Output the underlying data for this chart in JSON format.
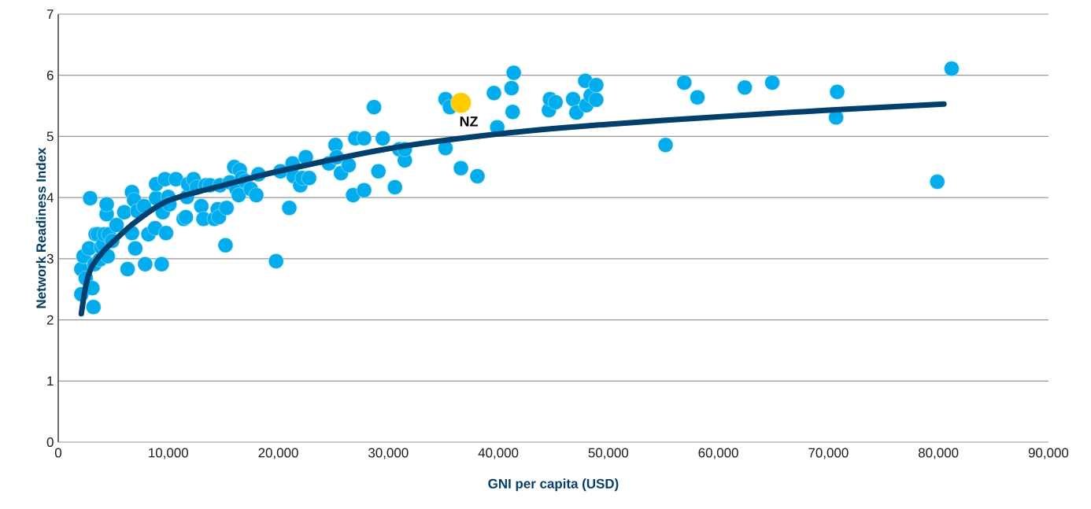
{
  "chart_data": {
    "type": "scatter",
    "xlabel": "GNI per capita (USD)",
    "ylabel": "Network Readiness Index",
    "xlim": [
      0,
      90000
    ],
    "ylim": [
      0,
      7
    ],
    "xticks": [
      0,
      {
        "value": 10000,
        "label": "10,000"
      },
      {
        "value": 20000,
        "label": "20,000"
      },
      {
        "value": 30000,
        "label": "30,000"
      },
      {
        "value": 40000,
        "label": "40,000"
      },
      {
        "value": 50000,
        "label": "50,000"
      },
      {
        "value": 60000,
        "label": "60,000"
      },
      {
        "value": 70000,
        "label": "70,000"
      },
      {
        "value": 80000,
        "label": "80,000"
      },
      {
        "value": 90000,
        "label": "90,000"
      }
    ],
    "yticks": [
      0,
      1,
      2,
      3,
      4,
      5,
      6,
      7
    ],
    "grid": "y",
    "series": [
      {
        "color": "#00aeef",
        "marker": "circle",
        "x": [
          2100,
          2100,
          2300,
          2500,
          2800,
          2900,
          3100,
          3200,
          3300,
          3400,
          3600,
          3800,
          3900,
          4100,
          4200,
          4400,
          4400,
          4500,
          4600,
          4900,
          5300,
          6000,
          6300,
          6700,
          6700,
          6900,
          7000,
          7200,
          7800,
          7900,
          8200,
          8800,
          8900,
          8900,
          9400,
          9500,
          9700,
          9800,
          10000,
          10100,
          10700,
          11400,
          11600,
          11700,
          11800,
          12300,
          12600,
          13000,
          13200,
          13400,
          13800,
          14200,
          14500,
          14600,
          14700,
          15200,
          15300,
          15600,
          16000,
          16200,
          16400,
          16500,
          16700,
          17000,
          17500,
          18000,
          18200,
          19800,
          20200,
          21000,
          21300,
          21400,
          22000,
          22200,
          22500,
          22800,
          24600,
          25200,
          25300,
          25700,
          26400,
          26800,
          27000,
          27800,
          27800,
          28700,
          29100,
          29500,
          30600,
          31000,
          31500,
          31500,
          35200,
          35200,
          35600,
          36600,
          38100,
          39600,
          39900,
          41200,
          41300,
          41400,
          44600,
          44700,
          45200,
          46800,
          47100,
          47900,
          48000,
          48400,
          48900,
          48900,
          55200,
          56900,
          58100,
          62400,
          64900,
          70700,
          70800,
          79900,
          81200
        ],
        "values": [
          2.42,
          2.83,
          3.04,
          2.68,
          3.17,
          3.99,
          2.52,
          2.21,
          2.91,
          3.4,
          3.4,
          2.99,
          3.19,
          3.24,
          3.4,
          3.73,
          3.89,
          3.04,
          3.4,
          3.29,
          3.55,
          3.76,
          2.83,
          4.09,
          3.42,
          3.96,
          3.17,
          3.78,
          3.86,
          2.91,
          3.4,
          3.5,
          3.99,
          4.22,
          2.91,
          3.76,
          4.3,
          3.42,
          4.01,
          3.89,
          4.3,
          3.65,
          3.68,
          4.01,
          4.22,
          4.3,
          4.17,
          3.86,
          3.65,
          4.2,
          4.2,
          3.65,
          3.81,
          3.68,
          4.2,
          3.22,
          3.83,
          4.25,
          4.5,
          4.14,
          4.04,
          4.45,
          4.32,
          4.27,
          4.14,
          4.04,
          4.38,
          2.96,
          4.43,
          3.83,
          4.56,
          4.35,
          4.2,
          4.32,
          4.66,
          4.32,
          4.56,
          4.86,
          4.66,
          4.4,
          4.53,
          4.04,
          4.97,
          4.97,
          4.12,
          5.48,
          4.43,
          4.97,
          4.17,
          4.79,
          4.61,
          4.79,
          5.61,
          4.81,
          5.48,
          4.48,
          4.35,
          5.71,
          5.15,
          5.79,
          5.4,
          6.04,
          5.43,
          5.61,
          5.56,
          5.61,
          5.39,
          5.91,
          5.51,
          5.67,
          5.6,
          5.84,
          4.86,
          5.88,
          5.64,
          5.8,
          5.88,
          5.31,
          5.73,
          4.26,
          6.11
        ]
      },
      {
        "type": "line",
        "marker": "none",
        "color": "#003f6e",
        "x": [
          2100,
          2500,
          3000,
          4000,
          5000,
          7000,
          10000,
          15000,
          20000,
          30000,
          40000,
          50000,
          60000,
          70000,
          80500
        ],
        "values": [
          2.1,
          2.55,
          2.85,
          3.1,
          3.28,
          3.6,
          3.95,
          4.2,
          4.43,
          4.8,
          5.04,
          5.2,
          5.32,
          5.43,
          5.53
        ]
      },
      {
        "name": "NZ",
        "color": "#ffcc00",
        "marker": "circle",
        "x": [
          36600
        ],
        "values": [
          5.55
        ]
      }
    ]
  }
}
